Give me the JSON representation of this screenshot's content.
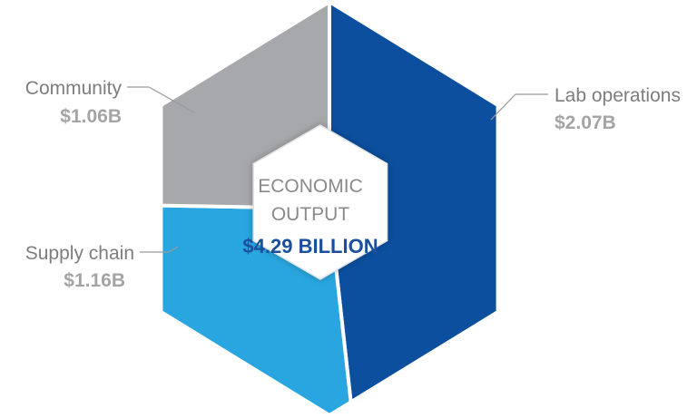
{
  "chart_data": {
    "type": "pie",
    "center_label": [
      "ECONOMIC",
      "OUTPUT"
    ],
    "center_total": "$4.29 BILLION",
    "slices": [
      {
        "name": "Lab operations",
        "value": 2.07,
        "value_label": "$2.07B",
        "color": "#0b4f9e"
      },
      {
        "name": "Supply chain",
        "value": 1.16,
        "value_label": "$1.16B",
        "color": "#29a6df"
      },
      {
        "name": "Community",
        "value": 1.06,
        "value_label": "$1.06B",
        "color": "#a7a8ab"
      }
    ]
  },
  "colors": {
    "lab_operations": "#0b4f9e",
    "supply_chain": "#29a6df",
    "community": "#a7a8ab",
    "center_fill": "#ffffff",
    "total_text": "#1b4f9c"
  }
}
